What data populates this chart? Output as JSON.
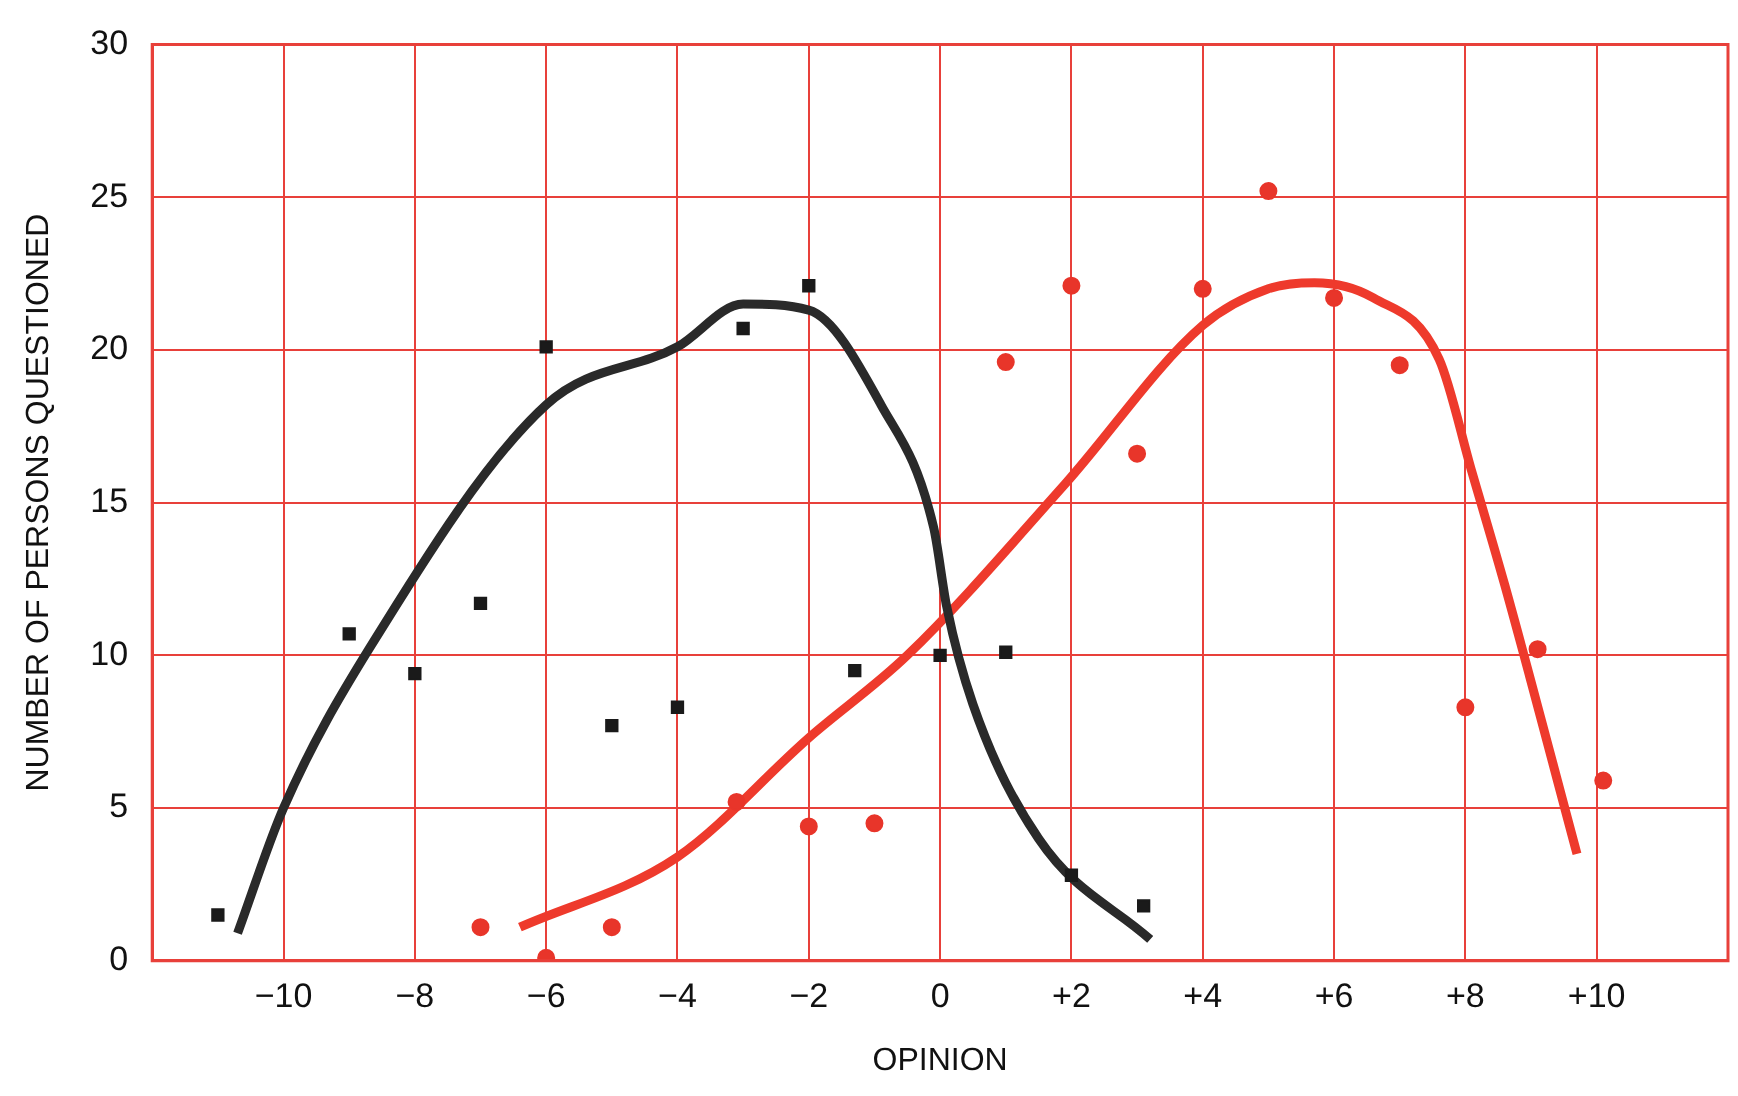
{
  "chart_data": {
    "type": "scatter",
    "xlabel": "OPINION",
    "ylabel": "NUMBER OF PERSONS QUESTIONED",
    "xlim": [
      -12,
      12
    ],
    "xticks": [
      {
        "value": -10,
        "label": "−10"
      },
      {
        "value": -8,
        "label": "−8"
      },
      {
        "value": -6,
        "label": "−6"
      },
      {
        "value": -4,
        "label": "−4"
      },
      {
        "value": -2,
        "label": "−2"
      },
      0,
      {
        "value": 2,
        "label": "+2"
      },
      {
        "value": 4,
        "label": "+4"
      },
      {
        "value": 6,
        "label": "+6"
      },
      {
        "value": 8,
        "label": "+8"
      },
      {
        "value": 10,
        "label": "+10"
      }
    ],
    "ylim": [
      0,
      30
    ],
    "yticks": [
      0,
      5,
      10,
      15,
      20,
      25,
      30
    ],
    "grid": true,
    "series": [
      {
        "marker": "square",
        "color": "#1a1a1a",
        "x": [
          -11,
          -9,
          -8,
          -7,
          -6,
          -5,
          -4,
          -3,
          -2,
          -1.3,
          0,
          1,
          2,
          3.1
        ],
        "values": [
          1.5,
          10.7,
          9.4,
          11.7,
          20.1,
          7.7,
          8.3,
          20.7,
          22.1,
          9.5,
          10,
          10.1,
          2.8,
          1.8
        ]
      },
      {
        "marker": "circle",
        "color": "#e8352a",
        "x": [
          -7,
          -6,
          -5,
          -3.1,
          -2,
          -1,
          1,
          2,
          3,
          4,
          5,
          6,
          7,
          8,
          9.1,
          10.1
        ],
        "values": [
          1.1,
          0.1,
          1.1,
          5.2,
          4.4,
          4.5,
          19.6,
          22.1,
          16.6,
          22,
          25.2,
          21.7,
          19.5,
          8.3,
          10.2,
          5.9
        ]
      },
      {
        "type": "line",
        "color": "#2a2a2a",
        "x": [
          -10.7,
          -10,
          -8.7,
          -6,
          -4,
          -3,
          -2,
          -0.9,
          -0.1,
          0.1,
          0.5,
          1.5,
          3.2
        ],
        "values": [
          0.9,
          5,
          10.2,
          18.2,
          20.1,
          21.5,
          21.3,
          18.2,
          14.2,
          11.6,
          8.4,
          4,
          0.7
        ]
      },
      {
        "type": "line",
        "color": "#ee3a2c",
        "x": [
          -6.4,
          -4,
          -2,
          -0.5,
          1.9,
          4,
          5,
          5.7,
          6.6,
          7.6,
          8.1,
          8.6,
          9.7
        ],
        "values": [
          1.1,
          3.4,
          7.3,
          10,
          15.6,
          20.8,
          22,
          22.2,
          21.7,
          19.7,
          16,
          12.3,
          3.5
        ]
      }
    ]
  }
}
